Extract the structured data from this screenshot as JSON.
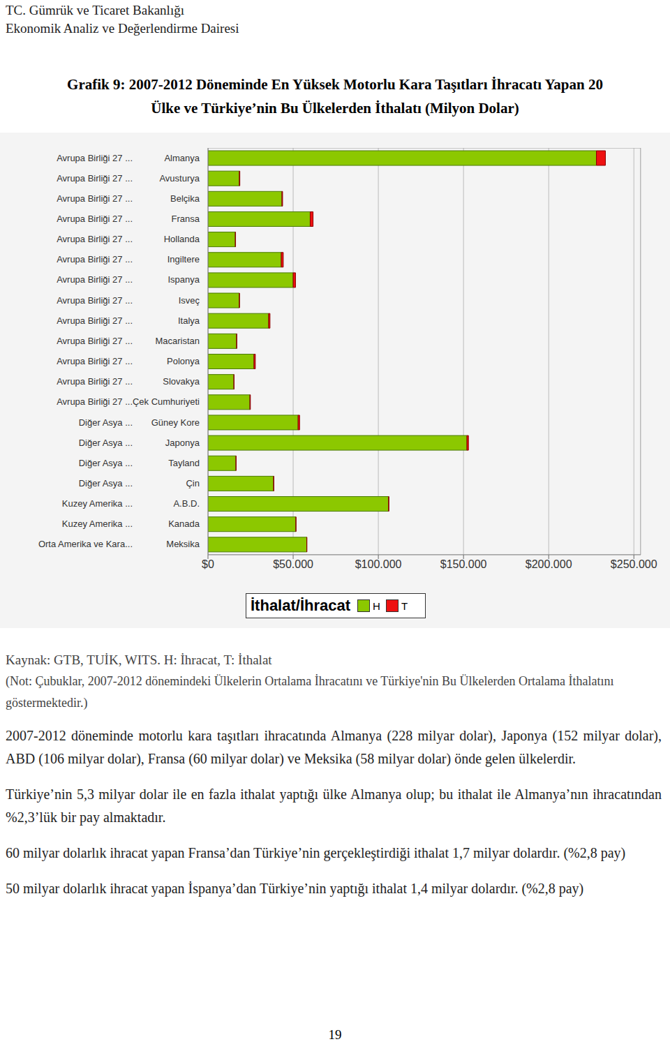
{
  "header": {
    "lines": [
      "TC. Gümrük ve Ticaret Bakanlığı",
      "Ekonomik Analiz ve Değerlendirme Dairesi"
    ]
  },
  "figure_title": [
    "Grafik 9: 2007-2012 Döneminde En Yüksek Motorlu Kara Taşıtları İhracatı Yapan 20",
    "Ülke ve Türkiye’nin Bu Ülkelerden İthalatı (Milyon Dolar)"
  ],
  "chart_data": {
    "type": "bar",
    "orientation": "horizontal",
    "stacked": true,
    "grid": true,
    "legend_title": "İthalat/İhracat",
    "groups": [
      "Avrupa Birliği 27 ...",
      "Avrupa Birliği 27 ...",
      "Avrupa Birliği 27 ...",
      "Avrupa Birliği 27 ...",
      "Avrupa Birliği 27 ...",
      "Avrupa Birliği 27 ...",
      "Avrupa Birliği 27 ...",
      "Avrupa Birliği 27 ...",
      "Avrupa Birliği 27 ...",
      "Avrupa Birliği 27 ...",
      "Avrupa Birliği 27 ...",
      "Avrupa Birliği 27 ...",
      "Avrupa Birliği 27 ...",
      "Diğer Asya ...",
      "Diğer Asya ...",
      "Diğer Asya ...",
      "Diğer Asya ...",
      "Kuzey Amerika ...",
      "Kuzey Amerika ...",
      "Orta Amerika ve Kara..."
    ],
    "categories": [
      "Almanya",
      "Avusturya",
      "Belçika",
      "Fransa",
      "Hollanda",
      "Ingiltere",
      "Ispanya",
      "Isveç",
      "Italya",
      "Macaristan",
      "Polonya",
      "Slovakya",
      "Çek Cumhuriyeti",
      "Güney Kore",
      "Japonya",
      "Tayland",
      "Çin",
      "A.B.D.",
      "Kanada",
      "Meksika"
    ],
    "series": [
      {
        "name": "H",
        "color": "#8cc800",
        "values": [
          228000,
          18400,
          43400,
          60000,
          16000,
          43000,
          50000,
          18400,
          35600,
          16800,
          27000,
          15200,
          24600,
          52900,
          152000,
          16400,
          38500,
          106000,
          51600,
          58000
        ]
      },
      {
        "name": "T",
        "color": "#ee1111",
        "values": [
          5300,
          300,
          400,
          1700,
          200,
          1200,
          1400,
          100,
          800,
          100,
          800,
          100,
          300,
          900,
          900,
          100,
          200,
          200,
          50,
          50
        ]
      }
    ],
    "xlim": [
      0,
      254000
    ],
    "xticks": [
      {
        "value": 0,
        "label": "$0"
      },
      {
        "value": 50000,
        "label": "$50.000"
      },
      {
        "value": 100000,
        "label": "$100.000"
      },
      {
        "value": 150000,
        "label": "$150.000"
      },
      {
        "value": 200000,
        "label": "$200.000"
      },
      {
        "value": 250000,
        "label": "$250.000"
      }
    ]
  },
  "source": "Kaynak: GTB, TUİK, WITS. H: İhracat, T: İthalat",
  "note": "(Not: Çubuklar, 2007-2012 dönemindeki Ülkelerin Ortalama İhracatını ve Türkiye'nin Bu Ülkelerden Ortalama İthalatını göstermektedir.)",
  "paragraphs": [
    "2007-2012 döneminde motorlu kara taşıtları ihracatında Almanya (228 milyar dolar), Japonya (152 milyar dolar), ABD (106 milyar dolar), Fransa (60 milyar dolar) ve Meksika (58 milyar dolar) önde gelen ülkelerdir.",
    "Türkiye’nin 5,3 milyar dolar ile en fazla ithalat yaptığı ülke Almanya olup; bu ithalat ile Almanya’nın ihracatından %2,3’lük bir pay almaktadır.",
    "60 milyar dolarlık ihracat yapan Fransa’dan Türkiye’nin gerçekleştirdiği ithalat 1,7 milyar dolardır. (%2,8 pay)",
    "50 milyar dolarlık ihracat yapan İspanya’dan Türkiye’nin yaptığı ithalat 1,4 milyar dolardır. (%2,8 pay)"
  ],
  "page_number": "19"
}
